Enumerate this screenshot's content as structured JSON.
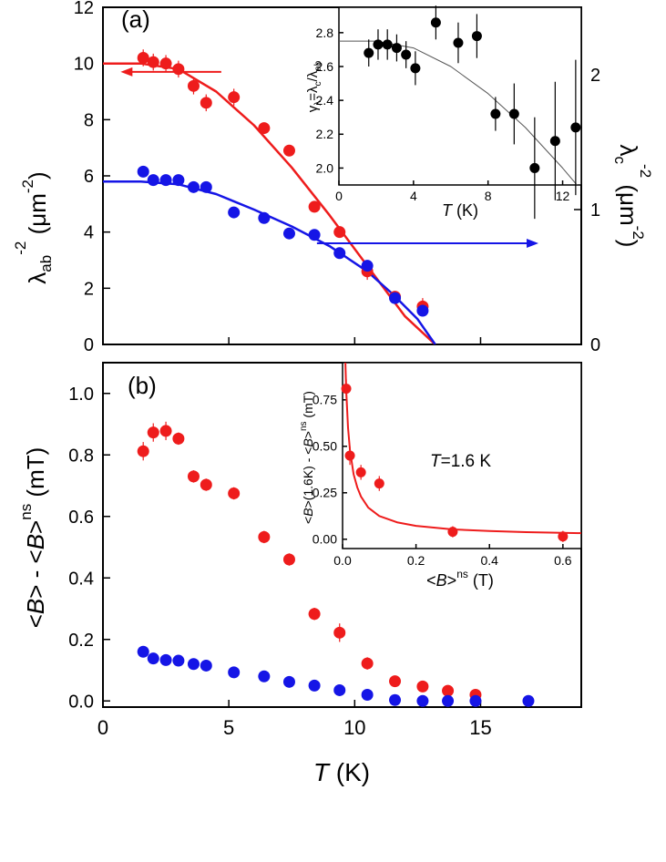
{
  "colors": {
    "red": "#ee1c1c",
    "blue": "#1515e6",
    "black": "#000000",
    "fit_gray": "#555555"
  },
  "chart_data": [
    {
      "id": "a",
      "type": "scatter",
      "panel_label": "(a)",
      "xlim": [
        0,
        19
      ],
      "ylim": [
        0,
        12
      ],
      "y_ticks": [
        "0",
        "2",
        "4",
        "6",
        "8",
        "10",
        "12"
      ],
      "ylabel": "λab-2 (μm-2)",
      "ylabel_right": "λc-2 (μm-2)",
      "y2lim": [
        0,
        2.5
      ],
      "y2_ticks": [
        "0",
        "1",
        "2"
      ],
      "series": [
        {
          "color_key": "red",
          "axis": "left",
          "x": [
            1.6,
            2.0,
            2.5,
            3.0,
            3.6,
            4.1,
            5.2,
            6.4,
            7.4,
            8.4,
            9.4,
            10.5,
            11.6,
            12.7
          ],
          "y": [
            10.2,
            10.05,
            10.0,
            9.8,
            9.2,
            8.6,
            8.8,
            7.7,
            6.9,
            4.9,
            4.0,
            2.6,
            1.7,
            1.35
          ],
          "yerr": [
            0.3,
            0.3,
            0.3,
            0.3,
            0.3,
            0.3,
            0.3,
            0.2,
            0.2,
            0.2,
            0.2,
            0.3,
            0.2,
            0.3
          ],
          "fit": {
            "x": [
              0,
              1.5,
              3.0,
              4.5,
              6.0,
              7.5,
              9.0,
              10.5,
              12.0,
              13.2
            ],
            "y": [
              10.0,
              10.0,
              9.8,
              9.0,
              7.8,
              6.3,
              4.6,
              2.8,
              1.0,
              0
            ]
          }
        },
        {
          "color_key": "blue",
          "axis": "left",
          "x": [
            1.6,
            2.0,
            2.5,
            3.0,
            3.6,
            4.1,
            5.2,
            6.4,
            7.4,
            8.4,
            9.4,
            10.5,
            11.6,
            12.7
          ],
          "y": [
            6.15,
            5.85,
            5.85,
            5.85,
            5.6,
            5.6,
            4.7,
            4.5,
            3.95,
            3.9,
            3.25,
            2.8,
            1.65,
            1.2
          ],
          "fit": {
            "x": [
              0,
              1.5,
              3.0,
              4.5,
              6.0,
              7.5,
              9.0,
              10.5,
              11.5,
              12.5,
              13.2
            ],
            "y": [
              5.8,
              5.8,
              5.7,
              5.35,
              4.8,
              4.2,
              3.5,
              2.6,
              1.8,
              0.9,
              0
            ]
          }
        }
      ],
      "arrows": [
        {
          "from": [
            4.7,
            9.7
          ],
          "to": [
            0.7,
            9.7
          ],
          "color_key": "red"
        },
        {
          "from": [
            8.5,
            3.6
          ],
          "to": [
            17.3,
            3.6
          ],
          "color_key": "blue"
        }
      ],
      "inset": {
        "type": "scatter",
        "xlim": [
          0,
          13
        ],
        "ylim": [
          1.9,
          2.95
        ],
        "x_ticks": [
          "0",
          "4",
          "8",
          "12"
        ],
        "y_ticks": [
          "2.0",
          "2.2",
          "2.4",
          "2.6",
          "2.8"
        ],
        "xlabel": "T (K)",
        "ylabel": "γλ=λc/λab",
        "series": [
          {
            "color_key": "black",
            "x": [
              1.6,
              2.1,
              2.6,
              3.1,
              3.6,
              4.1,
              5.2,
              6.4,
              7.4,
              8.4,
              9.4,
              10.5,
              11.6,
              12.7
            ],
            "y": [
              2.68,
              2.73,
              2.73,
              2.71,
              2.67,
              2.59,
              2.86,
              2.74,
              2.78,
              2.32,
              2.32,
              2.0,
              2.16,
              2.24
            ],
            "yerr": [
              0.08,
              0.09,
              0.09,
              0.08,
              0.08,
              0.1,
              0.1,
              0.12,
              0.13,
              0.1,
              0.18,
              0.3,
              0.35,
              0.4
            ],
            "fit": {
              "x": [
                0,
                2,
                4,
                6,
                8,
                10,
                12,
                13
              ],
              "y": [
                2.75,
                2.75,
                2.71,
                2.6,
                2.44,
                2.24,
                2.0,
                1.87
              ]
            }
          }
        ]
      }
    },
    {
      "id": "b",
      "type": "scatter",
      "panel_label": "(b)",
      "xlim": [
        0,
        19
      ],
      "ylim": [
        -0.02,
        1.1
      ],
      "x_ticks": [
        "0",
        "5",
        "10",
        "15"
      ],
      "y_ticks": [
        "0.0",
        "0.2",
        "0.4",
        "0.6",
        "0.8",
        "1.0"
      ],
      "xlabel": "T (K)",
      "ylabel": "<B> - <B>ns (mT)",
      "series": [
        {
          "color_key": "red",
          "x": [
            1.6,
            2.0,
            2.5,
            3.0,
            3.6,
            4.1,
            5.2,
            6.4,
            7.4,
            8.4,
            9.4,
            10.5,
            11.6,
            12.7,
            13.7,
            14.8
          ],
          "y": [
            0.812,
            0.873,
            0.878,
            0.853,
            0.73,
            0.703,
            0.675,
            0.533,
            0.46,
            0.283,
            0.222,
            0.122,
            0.064,
            0.047,
            0.033,
            0.02
          ],
          "yerr": [
            0.03,
            0.03,
            0.03,
            0.02,
            0.02,
            0.02,
            0.02,
            0.02,
            0.02,
            0.02,
            0.03,
            0.02,
            0.01,
            0.01,
            0.01,
            0.01
          ]
        },
        {
          "color_key": "blue",
          "x": [
            1.6,
            2.0,
            2.5,
            3.0,
            3.6,
            4.1,
            5.2,
            6.4,
            7.4,
            8.4,
            9.4,
            10.5,
            11.6,
            12.7,
            13.7,
            14.8,
            16.9
          ],
          "y": [
            0.16,
            0.138,
            0.133,
            0.131,
            0.12,
            0.115,
            0.093,
            0.08,
            0.062,
            0.05,
            0.035,
            0.02,
            0.003,
            0.0,
            0.0,
            0.0,
            0.0
          ]
        }
      ],
      "inset": {
        "type": "scatter",
        "xlim": [
          0,
          0.65
        ],
        "ylim": [
          -0.05,
          0.95
        ],
        "x_ticks": [
          "0.0",
          "0.2",
          "0.4",
          "0.6"
        ],
        "y_ticks": [
          "0.00",
          "0.25",
          "0.50",
          "0.75"
        ],
        "xlabel": "<B>ns (T)",
        "ylabel": "<B>(1.6K) - <B>ns (mT)",
        "annotation": "T=1.6 K",
        "series": [
          {
            "color_key": "red",
            "x": [
              0.01,
              0.02,
              0.05,
              0.1,
              0.3,
              0.6
            ],
            "y": [
              0.81,
              0.45,
              0.36,
              0.3,
              0.04,
              0.015
            ],
            "yerr": [
              0.05,
              0.05,
              0.04,
              0.04,
              0.03,
              0.03
            ],
            "fit": {
              "x": [
                0.007,
                0.01,
                0.015,
                0.02,
                0.03,
                0.04,
                0.05,
                0.07,
                0.1,
                0.15,
                0.2,
                0.3,
                0.4,
                0.5,
                0.65
              ],
              "y": [
                1.0,
                0.8,
                0.6,
                0.48,
                0.35,
                0.28,
                0.23,
                0.17,
                0.125,
                0.09,
                0.072,
                0.053,
                0.044,
                0.038,
                0.033
              ]
            }
          }
        ]
      }
    }
  ]
}
